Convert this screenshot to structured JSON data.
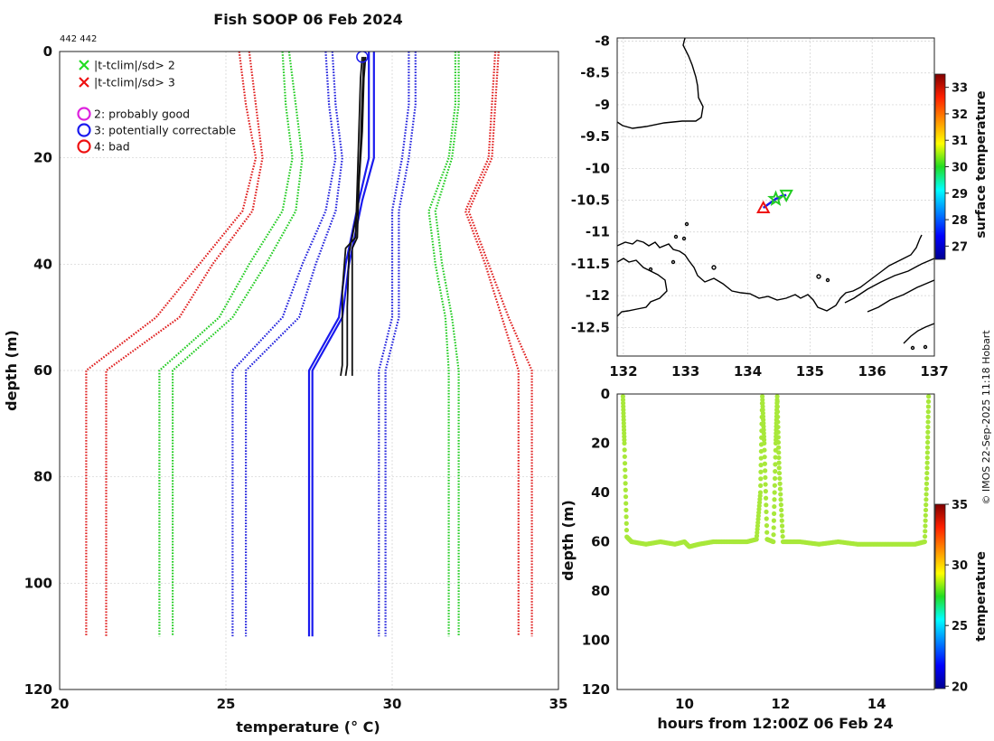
{
  "title": "Fish SOOP 06 Feb 2024",
  "profile_id": "442 442",
  "credit": "© IMOS 22-Sep-2025 11:18 Hobart",
  "chart_data": [
    {
      "id": "profile",
      "type": "line",
      "xlabel": "temperature (° C)",
      "ylabel": "depth (m)",
      "xlim": [
        20,
        35
      ],
      "ylim": [
        0,
        120
      ],
      "y_reversed": true,
      "xticks": [
        20,
        25,
        30,
        35
      ],
      "yticks": [
        0,
        20,
        40,
        60,
        80,
        100,
        120
      ],
      "grid": true,
      "legend_position": "top-left",
      "legend": [
        {
          "label": "|t-tclim|/sd> 2",
          "marker": "x",
          "color": "#22dd22"
        },
        {
          "label": "|t-tclim|/sd> 3",
          "marker": "x",
          "color": "#ee1111"
        },
        {
          "label": "2: probably good",
          "marker": "o",
          "color": "#dd22dd"
        },
        {
          "label": "3: potentially correctable",
          "marker": "o",
          "color": "#1a1aee"
        },
        {
          "label": "4: bad",
          "marker": "o",
          "color": "#ee1111"
        }
      ],
      "series": [
        {
          "name": "red envelope low 1",
          "color": "#e02020",
          "style": "dotted",
          "points": [
            [
              25.4,
              0
            ],
            [
              25.6,
              10
            ],
            [
              25.9,
              20
            ],
            [
              25.5,
              30
            ],
            [
              24.2,
              40
            ],
            [
              22.9,
              50
            ],
            [
              20.8,
              60
            ],
            [
              20.8,
              110
            ]
          ]
        },
        {
          "name": "red envelope low 2",
          "color": "#e02020",
          "style": "dotted",
          "points": [
            [
              25.7,
              0
            ],
            [
              25.9,
              10
            ],
            [
              26.1,
              20
            ],
            [
              25.8,
              30
            ],
            [
              24.6,
              40
            ],
            [
              23.6,
              50
            ],
            [
              21.4,
              60
            ],
            [
              21.4,
              110
            ]
          ]
        },
        {
          "name": "green envelope low 1",
          "color": "#22cc22",
          "style": "dotted",
          "points": [
            [
              26.7,
              0
            ],
            [
              26.8,
              10
            ],
            [
              27.0,
              20
            ],
            [
              26.7,
              30
            ],
            [
              25.7,
              40
            ],
            [
              24.8,
              50
            ],
            [
              23.0,
              60
            ],
            [
              23.0,
              110
            ]
          ]
        },
        {
          "name": "green envelope low 2",
          "color": "#22cc22",
          "style": "dotted",
          "points": [
            [
              26.9,
              0
            ],
            [
              27.1,
              10
            ],
            [
              27.3,
              20
            ],
            [
              27.1,
              30
            ],
            [
              26.2,
              40
            ],
            [
              25.2,
              50
            ],
            [
              23.4,
              60
            ],
            [
              23.4,
              110
            ]
          ]
        },
        {
          "name": "blue envelope low 1",
          "color": "#2222dd",
          "style": "dotted",
          "points": [
            [
              28.0,
              0
            ],
            [
              28.1,
              10
            ],
            [
              28.3,
              20
            ],
            [
              28.0,
              30
            ],
            [
              27.3,
              40
            ],
            [
              26.7,
              50
            ],
            [
              25.2,
              60
            ],
            [
              25.2,
              110
            ]
          ]
        },
        {
          "name": "blue envelope low 2",
          "color": "#2222dd",
          "style": "dotted",
          "points": [
            [
              28.2,
              0
            ],
            [
              28.3,
              10
            ],
            [
              28.5,
              20
            ],
            [
              28.3,
              30
            ],
            [
              27.7,
              40
            ],
            [
              27.2,
              50
            ],
            [
              25.6,
              60
            ],
            [
              25.6,
              110
            ]
          ]
        },
        {
          "name": "blue envelope high 1",
          "color": "#2222dd",
          "style": "dotted",
          "points": [
            [
              30.5,
              0
            ],
            [
              30.5,
              10
            ],
            [
              30.3,
              20
            ],
            [
              30.0,
              30
            ],
            [
              30.0,
              40
            ],
            [
              30.0,
              50
            ],
            [
              29.6,
              60
            ],
            [
              29.6,
              110
            ]
          ]
        },
        {
          "name": "blue envelope high 2",
          "color": "#2222dd",
          "style": "dotted",
          "points": [
            [
              30.7,
              0
            ],
            [
              30.7,
              10
            ],
            [
              30.5,
              20
            ],
            [
              30.2,
              30
            ],
            [
              30.2,
              40
            ],
            [
              30.2,
              50
            ],
            [
              29.8,
              60
            ],
            [
              29.8,
              110
            ]
          ]
        },
        {
          "name": "green envelope high 1",
          "color": "#22cc22",
          "style": "dotted",
          "points": [
            [
              31.9,
              0
            ],
            [
              31.9,
              10
            ],
            [
              31.7,
              20
            ],
            [
              31.1,
              30
            ],
            [
              31.3,
              40
            ],
            [
              31.6,
              50
            ],
            [
              31.7,
              60
            ],
            [
              31.7,
              110
            ]
          ]
        },
        {
          "name": "green envelope high 2",
          "color": "#22cc22",
          "style": "dotted",
          "points": [
            [
              32.0,
              0
            ],
            [
              32.0,
              10
            ],
            [
              31.8,
              20
            ],
            [
              31.3,
              30
            ],
            [
              31.5,
              40
            ],
            [
              31.8,
              50
            ],
            [
              32.0,
              60
            ],
            [
              32.0,
              110
            ]
          ]
        },
        {
          "name": "red envelope high 1",
          "color": "#e02020",
          "style": "dotted",
          "points": [
            [
              33.1,
              0
            ],
            [
              33.0,
              10
            ],
            [
              32.9,
              20
            ],
            [
              32.2,
              30
            ],
            [
              32.8,
              40
            ],
            [
              33.3,
              50
            ],
            [
              33.8,
              60
            ],
            [
              33.8,
              110
            ]
          ]
        },
        {
          "name": "red envelope high 2",
          "color": "#e02020",
          "style": "dotted",
          "points": [
            [
              33.2,
              0
            ],
            [
              33.1,
              10
            ],
            [
              33.0,
              20
            ],
            [
              32.3,
              30
            ],
            [
              32.9,
              40
            ],
            [
              33.5,
              50
            ],
            [
              34.2,
              60
            ],
            [
              34.2,
              110
            ]
          ]
        },
        {
          "name": "climatology mean 1",
          "color": "#1a1aee",
          "style": "solid",
          "width": 2.2,
          "points": [
            [
              29.3,
              0
            ],
            [
              29.3,
              10
            ],
            [
              29.3,
              20
            ],
            [
              29.0,
              28
            ],
            [
              28.6,
              40
            ],
            [
              28.4,
              50
            ],
            [
              27.5,
              60
            ],
            [
              27.5,
              110
            ]
          ]
        },
        {
          "name": "climatology mean 2",
          "color": "#1a1aee",
          "style": "solid",
          "width": 2.2,
          "points": [
            [
              29.45,
              0
            ],
            [
              29.45,
              10
            ],
            [
              29.45,
              20
            ],
            [
              29.1,
              28
            ],
            [
              28.7,
              40
            ],
            [
              28.5,
              50
            ],
            [
              27.6,
              60
            ],
            [
              27.6,
              110
            ]
          ]
        },
        {
          "name": "observed profile 1",
          "color": "#111111",
          "style": "solid",
          "width": 1.8,
          "points": [
            [
              29.1,
              1
            ],
            [
              29.05,
              5
            ],
            [
              29.0,
              15
            ],
            [
              28.95,
              25
            ],
            [
              28.9,
              35
            ],
            [
              28.6,
              37
            ],
            [
              28.5,
              45
            ],
            [
              28.5,
              59
            ],
            [
              28.45,
              61
            ]
          ]
        },
        {
          "name": "observed profile 2",
          "color": "#111111",
          "style": "solid",
          "width": 1.8,
          "points": [
            [
              29.2,
              1
            ],
            [
              29.15,
              5
            ],
            [
              29.1,
              15
            ],
            [
              29.0,
              25
            ],
            [
              28.95,
              35
            ],
            [
              28.8,
              37
            ],
            [
              28.8,
              45
            ],
            [
              28.8,
              59
            ],
            [
              28.8,
              61
            ]
          ]
        },
        {
          "name": "observed profile 3",
          "color": "#111111",
          "style": "solid",
          "width": 1.8,
          "points": [
            [
              29.15,
              1
            ],
            [
              29.1,
              8
            ],
            [
              29.05,
              18
            ],
            [
              28.95,
              30
            ],
            [
              28.7,
              38
            ],
            [
              28.65,
              48
            ],
            [
              28.65,
              59
            ],
            [
              28.6,
              61
            ]
          ]
        }
      ],
      "flag_marker": {
        "x": 29.1,
        "y": 1,
        "color": "#1a1aee"
      }
    },
    {
      "id": "map",
      "type": "scatter",
      "xlim": [
        131.9,
        137
      ],
      "ylim": [
        -12.95,
        -7.95
      ],
      "xticks": [
        132,
        133,
        134,
        135,
        136,
        137
      ],
      "yticks": [
        -8,
        -8.5,
        -9,
        -9.5,
        -10,
        -10.5,
        -11,
        -11.5,
        -12,
        -12.5
      ],
      "colorbar_label": "surface temperature",
      "colorbar_range": [
        26.5,
        33.5
      ],
      "colorbar_ticks": [
        27,
        28,
        29,
        30,
        31,
        32,
        33
      ],
      "track": [
        [
          134.25,
          -10.62
        ],
        [
          134.35,
          -10.55
        ],
        [
          134.45,
          -10.48
        ],
        [
          134.55,
          -10.43
        ],
        [
          134.62,
          -10.42
        ]
      ],
      "markers": [
        {
          "lon": 134.25,
          "lat": -10.62,
          "symbol": "triangle-up",
          "color": "#ee1111"
        },
        {
          "lon": 134.45,
          "lat": -10.48,
          "symbol": "star",
          "color": "#22cc22"
        },
        {
          "lon": 134.62,
          "lat": -10.42,
          "symbol": "triangle-down",
          "color": "#22cc22"
        }
      ]
    },
    {
      "id": "depth_time",
      "type": "scatter",
      "xlabel": "hours from 12:00Z 06 Feb 24",
      "ylabel": "depth (m)",
      "xlim": [
        8.6,
        15.2
      ],
      "ylim": [
        0,
        120
      ],
      "y_reversed": true,
      "xticks": [
        10,
        12,
        14
      ],
      "yticks": [
        0,
        20,
        40,
        60,
        80,
        100,
        120
      ],
      "colorbar_label": "temperature",
      "colorbar_range": [
        19.8,
        35
      ],
      "colorbar_ticks": [
        20,
        25,
        30,
        35
      ],
      "point_color": "#a8e83a",
      "trace": [
        [
          8.72,
          1
        ],
        [
          8.75,
          20
        ],
        [
          8.8,
          58
        ],
        [
          8.9,
          60
        ],
        [
          9.2,
          61
        ],
        [
          9.5,
          60
        ],
        [
          9.8,
          61
        ],
        [
          10.0,
          60
        ],
        [
          10.1,
          62
        ],
        [
          10.3,
          61
        ],
        [
          10.6,
          60
        ],
        [
          11.0,
          60
        ],
        [
          11.3,
          60
        ],
        [
          11.5,
          59
        ],
        [
          11.58,
          40
        ],
        [
          11.62,
          1
        ],
        [
          11.66,
          20
        ],
        [
          11.72,
          59
        ],
        [
          11.85,
          60
        ],
        [
          11.9,
          20
        ],
        [
          11.93,
          1
        ],
        [
          11.97,
          30
        ],
        [
          12.05,
          60
        ],
        [
          12.4,
          60
        ],
        [
          12.8,
          61
        ],
        [
          13.2,
          60
        ],
        [
          13.6,
          61
        ],
        [
          14.0,
          61
        ],
        [
          14.4,
          61
        ],
        [
          14.8,
          61
        ],
        [
          15.0,
          60
        ],
        [
          15.05,
          30
        ],
        [
          15.08,
          1
        ]
      ]
    }
  ]
}
